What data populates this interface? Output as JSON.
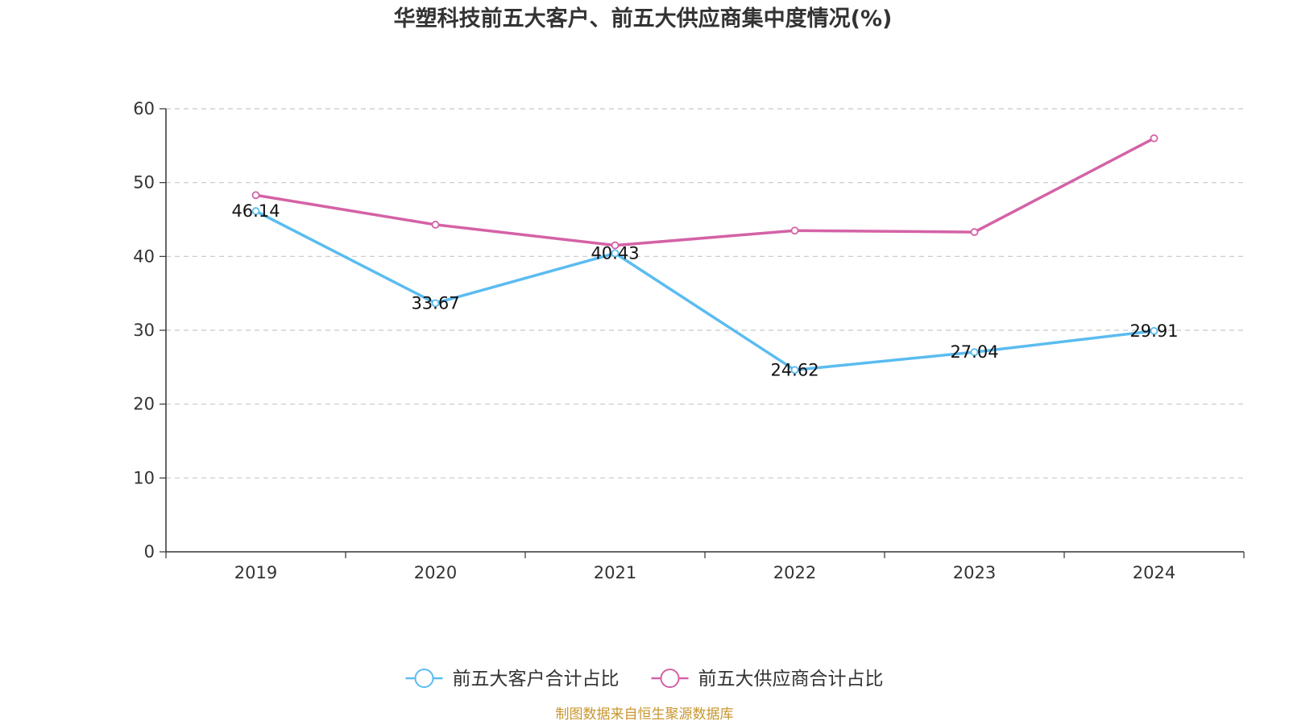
{
  "chart_data": {
    "type": "line",
    "title": "华塑科技前五大客户、前五大供应商集中度情况(%)",
    "categories": [
      "2019",
      "2020",
      "2021",
      "2022",
      "2023",
      "2024"
    ],
    "ylim": [
      0,
      60
    ],
    "yticks": [
      0,
      10,
      20,
      30,
      40,
      50,
      60
    ],
    "grid": true,
    "legend_position": "bottom-center",
    "series": [
      {
        "name": "前五大客户合计占比",
        "color": "#5bbcf0",
        "values": [
          46.14,
          33.67,
          40.43,
          24.62,
          27.04,
          29.91
        ],
        "data_labels": [
          "46.14",
          "33.67",
          "40.43",
          "24.62",
          "27.04",
          "29.91"
        ]
      },
      {
        "name": "前五大供应商合计占比",
        "color": "#d462a6",
        "values": [
          48.3,
          44.3,
          41.5,
          43.5,
          43.3,
          56.0
        ]
      }
    ],
    "source": "制图数据来自恒生聚源数据库",
    "source_color": "#c8962e"
  }
}
